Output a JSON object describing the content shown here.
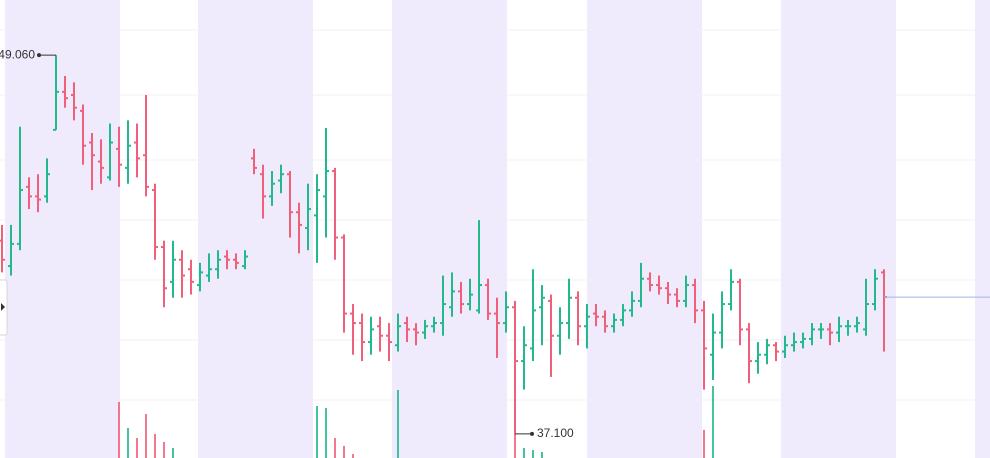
{
  "chart_data": {
    "type": "ohlc",
    "up_color": "#22ba8c",
    "down_color": "#f0607a",
    "ylim": [
      36.34,
      50.8
    ],
    "vlim": [
      0,
      100
    ],
    "ohlc": [
      [
        43.2,
        43.7,
        42.2,
        42.6
      ],
      [
        42.4,
        43.7,
        42.1,
        43.1
      ],
      [
        43.1,
        46.8,
        42.9,
        44.8
      ],
      [
        44.9,
        45.2,
        44.2,
        44.6
      ],
      [
        44.6,
        45.3,
        44.1,
        44.5
      ],
      [
        44.6,
        45.8,
        44.4,
        45.3
      ],
      [
        46.7,
        49.06,
        46.7,
        47.9
      ],
      [
        47.9,
        48.4,
        47.4,
        47.7
      ],
      [
        47.8,
        48.2,
        47.0,
        47.4
      ],
      [
        47.3,
        47.5,
        45.6,
        46.2
      ],
      [
        46.3,
        46.6,
        44.8,
        45.9
      ],
      [
        45.7,
        46.4,
        45.0,
        45.5
      ],
      [
        45.2,
        46.9,
        45.1,
        46.3
      ],
      [
        46.1,
        46.8,
        44.9,
        45.6
      ],
      [
        45.5,
        47.0,
        45.0,
        46.2
      ],
      [
        46.3,
        46.9,
        45.2,
        45.8
      ],
      [
        45.9,
        47.8,
        44.6,
        44.9
      ],
      [
        44.8,
        45.0,
        42.6,
        43.0
      ],
      [
        43.0,
        43.2,
        41.1,
        41.7
      ],
      [
        41.9,
        43.2,
        41.4,
        42.6
      ],
      [
        42.6,
        42.9,
        41.4,
        42.1
      ],
      [
        42.3,
        42.6,
        41.5,
        41.9
      ],
      [
        41.8,
        42.5,
        41.6,
        42.2
      ],
      [
        42.1,
        42.8,
        41.9,
        42.3
      ],
      [
        42.3,
        42.9,
        42.0,
        42.6
      ],
      [
        42.7,
        42.9,
        42.3,
        42.6
      ],
      [
        42.6,
        42.8,
        42.3,
        42.5
      ],
      [
        42.4,
        42.9,
        42.3,
        42.7
      ],
      [
        45.8,
        46.1,
        45.3,
        45.5
      ],
      [
        45.3,
        45.6,
        43.9,
        44.6
      ],
      [
        44.6,
        45.4,
        44.3,
        45.0
      ],
      [
        45.1,
        45.6,
        44.7,
        45.3
      ],
      [
        45.3,
        45.4,
        43.3,
        44.1
      ],
      [
        44.1,
        44.4,
        42.8,
        43.7
      ],
      [
        43.6,
        45.0,
        42.9,
        44.2
      ],
      [
        44.0,
        45.3,
        42.5,
        44.8
      ],
      [
        44.6,
        46.76,
        43.3,
        45.4
      ],
      [
        45.4,
        45.5,
        42.6,
        43.3
      ],
      [
        43.3,
        43.4,
        40.3,
        40.9
      ],
      [
        40.9,
        41.2,
        39.6,
        40.6
      ],
      [
        40.6,
        40.9,
        39.4,
        40.0
      ],
      [
        40.0,
        40.8,
        39.6,
        40.4
      ],
      [
        40.5,
        40.8,
        39.7,
        40.2
      ],
      [
        40.2,
        40.6,
        39.4,
        40.0
      ],
      [
        39.9,
        40.9,
        39.7,
        40.5
      ],
      [
        40.6,
        40.8,
        40.0,
        40.4
      ],
      [
        40.4,
        40.6,
        39.9,
        40.3
      ],
      [
        40.3,
        40.7,
        40.1,
        40.5
      ],
      [
        40.5,
        40.8,
        40.3,
        40.6
      ],
      [
        40.6,
        42.1,
        40.2,
        41.2
      ],
      [
        41.1,
        42.2,
        40.8,
        41.6
      ],
      [
        41.6,
        41.9,
        40.9,
        41.2
      ],
      [
        41.2,
        42.0,
        41.0,
        41.5
      ],
      [
        41.0,
        43.85,
        40.9,
        41.8
      ],
      [
        41.8,
        42.0,
        40.7,
        40.9
      ],
      [
        40.9,
        41.4,
        39.5,
        40.6
      ],
      [
        40.6,
        41.6,
        40.3,
        41.1
      ],
      [
        41.1,
        41.3,
        37.1,
        39.4
      ],
      [
        39.4,
        40.5,
        38.5,
        39.9
      ],
      [
        39.8,
        42.3,
        39.4,
        41.0
      ],
      [
        41.1,
        41.8,
        39.9,
        41.4
      ],
      [
        41.3,
        41.5,
        38.9,
        40.2
      ],
      [
        40.2,
        41.1,
        39.6,
        40.6
      ],
      [
        40.6,
        42.0,
        40.1,
        41.4
      ],
      [
        41.4,
        41.6,
        39.9,
        40.5
      ],
      [
        40.5,
        41.2,
        39.8,
        40.8
      ],
      [
        40.9,
        41.2,
        40.5,
        40.8
      ],
      [
        40.8,
        41.0,
        40.3,
        40.5
      ],
      [
        40.5,
        40.9,
        40.3,
        40.7
      ],
      [
        40.7,
        41.2,
        40.5,
        41.0
      ],
      [
        41.0,
        41.6,
        40.8,
        41.3
      ],
      [
        41.3,
        42.5,
        41.1,
        42.0
      ],
      [
        42.0,
        42.2,
        41.6,
        41.8
      ],
      [
        41.8,
        42.1,
        41.5,
        41.7
      ],
      [
        41.7,
        41.9,
        41.2,
        41.5
      ],
      [
        41.5,
        41.7,
        41.1,
        41.3
      ],
      [
        41.3,
        42.1,
        41.1,
        41.8
      ],
      [
        41.8,
        42.0,
        40.6,
        41.0
      ],
      [
        41.0,
        41.3,
        38.5,
        39.8
      ],
      [
        39.6,
        40.9,
        38.8,
        40.3
      ],
      [
        40.3,
        41.6,
        39.8,
        41.2
      ],
      [
        41.2,
        42.3,
        41.0,
        41.9
      ],
      [
        41.9,
        42.0,
        39.9,
        40.4
      ],
      [
        40.4,
        40.6,
        38.7,
        39.4
      ],
      [
        39.4,
        40.0,
        39.0,
        39.6
      ],
      [
        39.6,
        40.1,
        39.3,
        39.9
      ],
      [
        39.9,
        40.0,
        39.4,
        39.7
      ],
      [
        39.7,
        40.2,
        39.5,
        39.9
      ],
      [
        39.9,
        40.3,
        39.7,
        40.0
      ],
      [
        40.0,
        40.3,
        39.8,
        40.1
      ],
      [
        40.1,
        40.6,
        39.9,
        40.4
      ],
      [
        40.4,
        40.6,
        40.1,
        40.4
      ],
      [
        40.4,
        40.6,
        39.9,
        40.3
      ],
      [
        40.3,
        40.8,
        40.0,
        40.5
      ],
      [
        40.5,
        40.7,
        40.2,
        40.5
      ],
      [
        40.5,
        40.8,
        40.3,
        40.6
      ],
      [
        40.4,
        42.0,
        40.2,
        41.2
      ],
      [
        41.2,
        42.3,
        41.0,
        42.0
      ],
      [
        42.2,
        42.3,
        39.7,
        41.42
      ]
    ],
    "volume": [
      0,
      0,
      0,
      0,
      0,
      0,
      0,
      0,
      0,
      0,
      0,
      0,
      0,
      28,
      15,
      10,
      22,
      12,
      8,
      5,
      0,
      0,
      0,
      0,
      0,
      0,
      0,
      0,
      0,
      0,
      0,
      0,
      0,
      0,
      0,
      26,
      25,
      10,
      6,
      2,
      0,
      0,
      0,
      0,
      34,
      0,
      0,
      0,
      0,
      0,
      0,
      0,
      0,
      0,
      0,
      0,
      0,
      12,
      5,
      4,
      3,
      0,
      0,
      0,
      0,
      0,
      0,
      0,
      0,
      0,
      0,
      0,
      0,
      0,
      0,
      0,
      0,
      0,
      14,
      36,
      0,
      0,
      0,
      0,
      0,
      0,
      0,
      0,
      0,
      0,
      0,
      0,
      0,
      0,
      0,
      0,
      0,
      0,
      0
    ],
    "annotations": [
      {
        "label": "49.060",
        "value": 49.06
      },
      {
        "label": "37.100",
        "value": 37.1
      }
    ],
    "last_price_color": "#9bb8ee"
  }
}
